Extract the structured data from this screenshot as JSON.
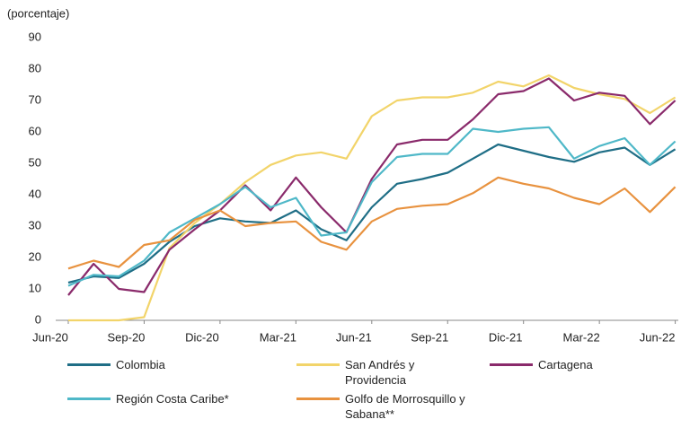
{
  "chart_data": {
    "type": "line",
    "y_label": "(porcentaje)",
    "categories": [
      "Jun-20",
      null,
      null,
      "Sep-20",
      null,
      null,
      "Dic-20",
      null,
      null,
      "Mar-21",
      null,
      null,
      "Jun-21",
      null,
      null,
      "Sep-21",
      null,
      null,
      "Dic-21",
      null,
      null,
      "Mar-22",
      null,
      null,
      "Jun-22"
    ],
    "ylim": [
      0,
      90
    ],
    "yticks": [
      0,
      10,
      20,
      30,
      40,
      50,
      60,
      70,
      80,
      90
    ],
    "grid": false,
    "series": [
      {
        "name": "Colombia",
        "color": "#1f6e86",
        "values": [
          12,
          14,
          13.5,
          18,
          25,
          30,
          32.5,
          31.5,
          31,
          35,
          29,
          25.5,
          36,
          43.5,
          45,
          47,
          51.5,
          56,
          54,
          52,
          50.5,
          53.5,
          55,
          49.5,
          54.5
        ]
      },
      {
        "name": "San Andrés y Providencia",
        "color": "#f2d46a",
        "values": [
          0,
          0,
          0,
          1,
          23,
          31,
          37,
          44,
          49.5,
          52.5,
          53.5,
          51.5,
          65,
          70,
          71,
          71,
          72.5,
          76,
          74.5,
          78,
          74,
          72,
          70.5,
          66,
          71
        ]
      },
      {
        "name": "Cartagena",
        "color": "#8a2a6b",
        "values": [
          8,
          18,
          10,
          9,
          22.5,
          29,
          35,
          43,
          35,
          45.5,
          36,
          28,
          45,
          56,
          57.5,
          57.5,
          64,
          72,
          73,
          77,
          70,
          72.5,
          71.5,
          62.5,
          70
        ]
      },
      {
        "name": "Región Costa Caribe*",
        "color": "#4fb8c8",
        "values": [
          11,
          14.5,
          14,
          19,
          28,
          32.5,
          37,
          42.5,
          36,
          39,
          27,
          28,
          44,
          52,
          53,
          53,
          61,
          60,
          61,
          61.5,
          51.5,
          55.5,
          58,
          49.5,
          57
        ]
      },
      {
        "name": "Golfo de Morrosquillo y Sabana**",
        "color": "#e8923f",
        "values": [
          16.5,
          19,
          17,
          24,
          25.5,
          32,
          35,
          30,
          31,
          31.5,
          25,
          22.5,
          31.5,
          35.5,
          36.5,
          37,
          40.5,
          45.5,
          43.5,
          42,
          39,
          37,
          42,
          34.5,
          42.5
        ]
      }
    ]
  }
}
